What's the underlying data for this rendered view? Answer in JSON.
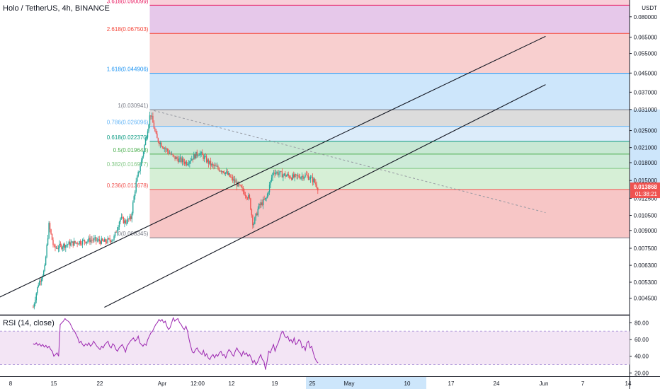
{
  "header": {
    "symbol": "Holo / TetherUS, 4h, BINANCE"
  },
  "colors": {
    "up": "#26a69a",
    "down": "#ef5350",
    "rsi": "#9c27b0",
    "price_badge": "#ef5350"
  },
  "chart_data": {
    "type": "candlestick",
    "title": "Holo / TetherUS, 4h, BINANCE",
    "y_axis_unit": "USDT",
    "y_scale": "log",
    "price_ticks": [
      "0.095000",
      "0.080000",
      "0.065000",
      "0.055000",
      "0.045000",
      "0.037000",
      "0.031000",
      "0.025000",
      "0.021000",
      "0.018000",
      "0.015000",
      "0.012500",
      "0.010500",
      "0.009000",
      "0.007500",
      "0.006300",
      "0.005300",
      "0.004500"
    ],
    "x_ticks": [
      "8",
      "15",
      "22",
      "Apr",
      "12:00",
      "12",
      "19",
      "25",
      "May",
      "10",
      "17",
      "24",
      "Jun",
      "7",
      "14"
    ],
    "fib_levels": [
      {
        "label": "0(0.008345)",
        "ratio": 0,
        "price": 0.008345,
        "color": "#787b86",
        "fill": "#f7c6c6"
      },
      {
        "label": "0.236(0.013678)",
        "ratio": 0.236,
        "price": 0.013678,
        "color": "#ef5350",
        "fill": "#d6efd6"
      },
      {
        "label": "0.382(0.016977)",
        "ratio": 0.382,
        "price": 0.016977,
        "color": "#81c784",
        "fill": "#cdebd8"
      },
      {
        "label": "0.5(0.019643)",
        "ratio": 0.5,
        "price": 0.019643,
        "color": "#4caf50",
        "fill": "#c8e8d4"
      },
      {
        "label": "0.618(0.022370)",
        "ratio": 0.618,
        "price": 0.02237,
        "color": "#089981",
        "fill": "#dcecfa"
      },
      {
        "label": "0.786(0.026096)",
        "ratio": 0.786,
        "price": 0.026096,
        "color": "#64b5f6",
        "fill": "#dcdcdc"
      },
      {
        "label": "1(0.030941)",
        "ratio": 1,
        "price": 0.030941,
        "color": "#787b86",
        "fill": "#cde6fb"
      },
      {
        "label": "1.618(0.044906)",
        "ratio": 1.618,
        "price": 0.044906,
        "color": "#2196f3",
        "fill": "#f8cfcf"
      },
      {
        "label": "2.618(0.067503)",
        "ratio": 2.618,
        "price": 0.067503,
        "color": "#f44336",
        "fill": "#e6c8ea"
      },
      {
        "label": "3.618(0.090099)",
        "ratio": 3.618,
        "price": 0.090099,
        "color": "#e91e63",
        "fill": "#f8cfd9"
      }
    ],
    "current_price": "0.013868",
    "countdown": "01:38:21",
    "rsi": {
      "label": "RSI (14, close)",
      "ticks": [
        "80.00",
        "60.00",
        "40.00",
        "20.00"
      ],
      "upper": 70,
      "lower": 30,
      "ylim": [
        16,
        88
      ],
      "values": [
        55,
        54,
        56,
        53,
        55,
        52,
        54,
        51,
        53,
        50,
        52,
        48,
        46,
        40,
        42,
        44,
        40,
        78,
        80,
        82,
        85,
        83,
        82,
        80,
        76,
        72,
        70,
        66,
        62,
        56,
        58,
        54,
        52,
        55,
        53,
        56,
        52,
        54,
        58,
        55,
        52,
        50,
        48,
        52,
        50,
        54,
        56,
        58,
        52,
        50,
        55,
        53,
        48,
        46,
        50,
        52,
        54,
        50,
        45,
        52,
        55,
        58,
        60,
        62,
        58,
        60,
        64,
        56,
        54,
        52,
        55,
        53,
        60,
        64,
        68,
        70,
        74,
        78,
        80,
        84,
        82,
        84,
        80,
        82,
        76,
        72,
        74,
        80,
        86,
        82,
        84,
        85,
        80,
        78,
        74,
        72,
        76,
        70,
        60,
        52,
        45,
        44,
        48,
        50,
        46,
        44,
        42,
        47,
        40,
        43,
        38,
        36,
        40,
        42,
        38,
        42,
        40,
        44,
        46,
        41,
        42,
        38,
        44,
        48,
        46,
        42,
        40,
        46,
        50,
        46,
        44,
        40,
        46,
        42,
        44,
        40,
        42,
        38,
        32,
        35,
        30,
        33,
        38,
        42,
        36,
        34,
        24,
        34,
        46,
        44,
        49,
        54,
        46,
        52,
        56,
        62,
        68,
        70,
        64,
        62,
        64,
        58,
        60,
        56,
        62,
        54,
        56,
        60,
        58,
        50,
        52,
        47,
        56,
        58,
        50,
        52,
        44,
        38,
        34,
        32
      ],
      "x_start_day": 12.7,
      "x_end_day": 57.9
    },
    "trendlines": [
      {
        "from": [
          4.0,
          0.0041
        ],
        "to": [
          94.0,
          0.0655
        ],
        "style": "solid"
      },
      {
        "from": [
          24.0,
          0.0041
        ],
        "to": [
          94.0,
          0.04
        ],
        "style": "solid"
      },
      {
        "from": [
          31.2,
          0.031
        ],
        "to": [
          94.0,
          0.0108
        ],
        "style": "dashed"
      }
    ],
    "fib_anchor_x": [
      31.2,
      94.0
    ],
    "x_axis_units": "days from Mar 1"
  }
}
